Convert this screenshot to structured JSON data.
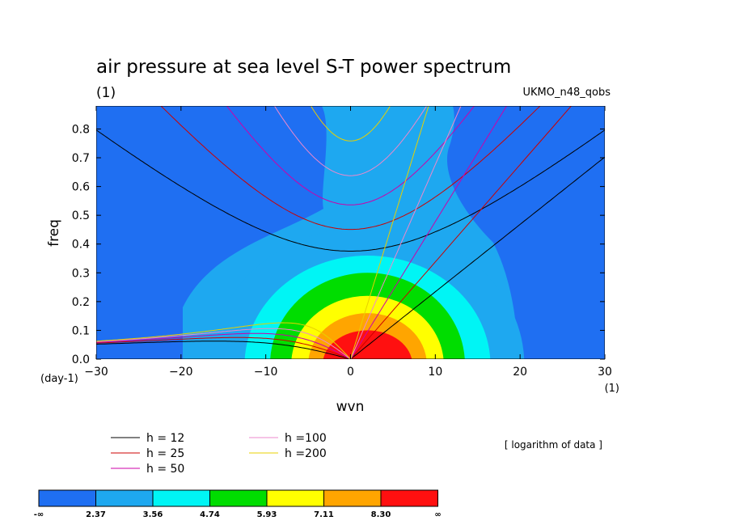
{
  "chart_data": {
    "type": "heatmap",
    "title": "air pressure at sea level S-T power spectrum",
    "subtitle": "(1)",
    "model_label": "UKMO_n48_qobs",
    "xlabel": "wvn",
    "ylabel": "freq",
    "x_unit_label": "(1)",
    "y_unit_label": "(day-1)",
    "xlim": [
      -30,
      30
    ],
    "ylim": [
      0,
      0.88
    ],
    "xticks": [
      -30,
      -20,
      -10,
      0,
      10,
      20,
      30
    ],
    "yticks": [
      0.0,
      0.1,
      0.2,
      0.3,
      0.4,
      0.5,
      0.6,
      0.7,
      0.8
    ],
    "ytick_labels": [
      "0.0",
      "0.1",
      "0.2",
      "0.3",
      "0.4",
      "0.5",
      "0.6",
      "0.7",
      "0.8"
    ],
    "note": "[ logarithm of data ]",
    "colorbar": {
      "colors": [
        "#1f6ff2",
        "#1ea8f0",
        "#00f5f5",
        "#00dd00",
        "#ffff00",
        "#ffa500",
        "#ff1010"
      ],
      "labels": [
        "-∞",
        "2.37",
        "3.56",
        "4.74",
        "5.93",
        "7.11",
        "8.30",
        "∞"
      ]
    },
    "contour_levels": [
      {
        "center": [
          2,
          -0.02
        ],
        "radii": [
          18.5,
          0.48
        ],
        "level": "2.37"
      },
      {
        "center": [
          2,
          -0.02
        ],
        "radii": [
          14.5,
          0.38
        ],
        "level": "3.56"
      },
      {
        "center": [
          2,
          -0.02
        ],
        "radii": [
          11.5,
          0.32
        ],
        "level": "4.74"
      },
      {
        "center": [
          2,
          -0.02
        ],
        "radii": [
          9.0,
          0.24
        ],
        "level": "5.93"
      },
      {
        "center": [
          2,
          -0.02
        ],
        "radii": [
          7.0,
          0.18
        ],
        "level": "7.11"
      },
      {
        "center": [
          2,
          -0.02
        ],
        "radii": [
          5.3,
          0.12
        ],
        "level": "8.30"
      }
    ],
    "dispersion_curves": [
      {
        "label": "h = 12",
        "h": 12,
        "color": "#000000"
      },
      {
        "label": "h = 25",
        "h": 25,
        "color": "#cc0000"
      },
      {
        "label": "h = 50",
        "h": 50,
        "color": "#cc00aa"
      },
      {
        "label": "h =100",
        "h": 100,
        "color": "#ee88cc"
      },
      {
        "label": "h =200",
        "h": 200,
        "color": "#e8d000"
      }
    ]
  }
}
